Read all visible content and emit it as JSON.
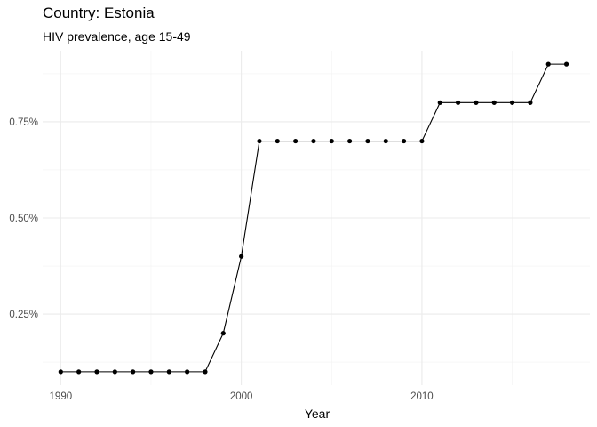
{
  "chart_data": {
    "type": "line",
    "title": "Country: Estonia",
    "subtitle": "HIV prevalence, age 15-49",
    "xlabel": "Year",
    "ylabel": "",
    "x_ticks": [
      1990,
      2000,
      2010
    ],
    "x_tick_labels": [
      "1990",
      "2000",
      "2010"
    ],
    "y_ticks": [
      0.25,
      0.5,
      0.75
    ],
    "y_tick_labels": [
      "0.25%",
      "0.50%",
      "0.75%"
    ],
    "xlim": [
      1989,
      2019.3
    ],
    "ylim": [
      0.065,
      0.935
    ],
    "grid": true,
    "series": [
      {
        "x": [
          1990,
          1991,
          1992,
          1993,
          1994,
          1995,
          1996,
          1997,
          1998,
          1999,
          2000,
          2001,
          2002,
          2003,
          2004,
          2005,
          2006,
          2007,
          2008,
          2009,
          2010,
          2011,
          2012,
          2013,
          2014,
          2015,
          2016,
          2017,
          2018
        ],
        "values": [
          0.1,
          0.1,
          0.1,
          0.1,
          0.1,
          0.1,
          0.1,
          0.1,
          0.1,
          0.2,
          0.4,
          0.7,
          0.7,
          0.7,
          0.7,
          0.7,
          0.7,
          0.7,
          0.7,
          0.7,
          0.7,
          0.8,
          0.8,
          0.8,
          0.8,
          0.8,
          0.8,
          0.9,
          0.9
        ],
        "color": "#000000"
      }
    ]
  }
}
